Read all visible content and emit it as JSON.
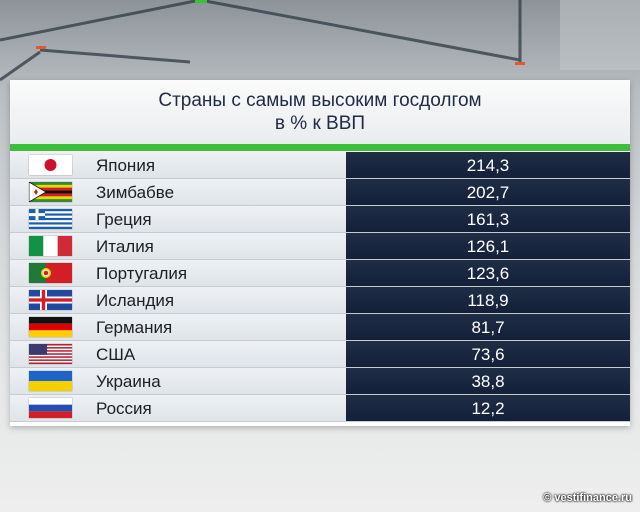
{
  "chart_data": {
    "type": "table",
    "title": "Страны с самым высоким госдолгом",
    "subtitle": "в % к ВВП",
    "rows": [
      {
        "country": "Япония",
        "value": "214,3",
        "flag": "japan"
      },
      {
        "country": "Зимбабве",
        "value": "202,7",
        "flag": "zimbabwe"
      },
      {
        "country": "Греция",
        "value": "161,3",
        "flag": "greece"
      },
      {
        "country": "Италия",
        "value": "126,1",
        "flag": "italy"
      },
      {
        "country": "Португалия",
        "value": "123,6",
        "flag": "portugal"
      },
      {
        "country": "Исландия",
        "value": "118,9",
        "flag": "iceland"
      },
      {
        "country": "Германия",
        "value": "81,7",
        "flag": "germany"
      },
      {
        "country": "США",
        "value": "73,6",
        "flag": "usa"
      },
      {
        "country": "Украина",
        "value": "38,8",
        "flag": "ukraine"
      },
      {
        "country": "Россия",
        "value": "12,2",
        "flag": "russia"
      }
    ]
  },
  "watermark": "© vestifinance.ru",
  "colors": {
    "accent_green": "#3bbf3b",
    "value_bg": "#1a2740",
    "title_text": "#1f2a44"
  }
}
